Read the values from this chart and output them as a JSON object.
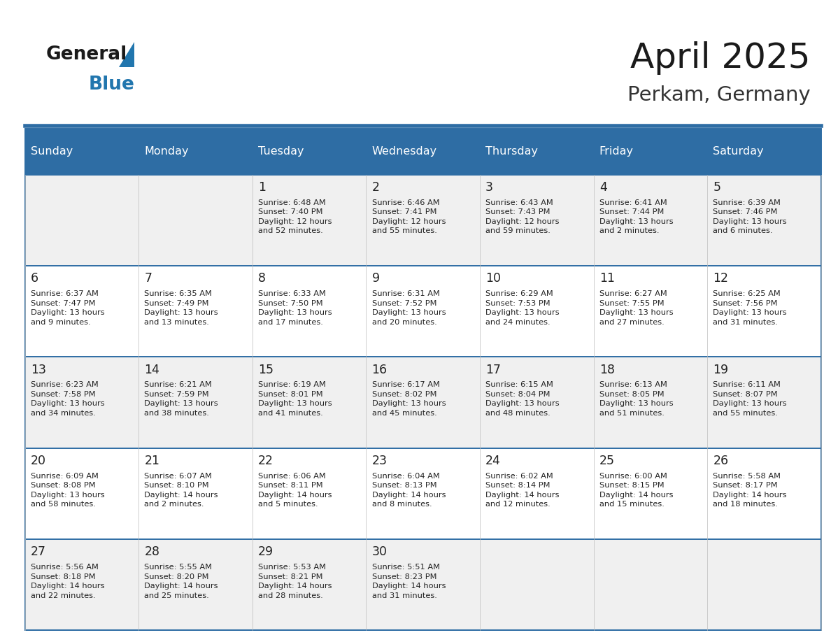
{
  "title": "April 2025",
  "subtitle": "Perkam, Germany",
  "days_of_week": [
    "Sunday",
    "Monday",
    "Tuesday",
    "Wednesday",
    "Thursday",
    "Friday",
    "Saturday"
  ],
  "header_bg": "#2E6DA4",
  "header_text": "#FFFFFF",
  "row_bg_even": "#F0F0F0",
  "row_bg_odd": "#FFFFFF",
  "cell_text": "#222222",
  "line_color": "#2E6DA4",
  "title_color": "#1a1a1a",
  "subtitle_color": "#333333",
  "logo_general_color": "#1a1a1a",
  "logo_blue_color": "#2176AE",
  "calendar": [
    [
      {
        "day": "",
        "info": ""
      },
      {
        "day": "",
        "info": ""
      },
      {
        "day": "1",
        "info": "Sunrise: 6:48 AM\nSunset: 7:40 PM\nDaylight: 12 hours\nand 52 minutes."
      },
      {
        "day": "2",
        "info": "Sunrise: 6:46 AM\nSunset: 7:41 PM\nDaylight: 12 hours\nand 55 minutes."
      },
      {
        "day": "3",
        "info": "Sunrise: 6:43 AM\nSunset: 7:43 PM\nDaylight: 12 hours\nand 59 minutes."
      },
      {
        "day": "4",
        "info": "Sunrise: 6:41 AM\nSunset: 7:44 PM\nDaylight: 13 hours\nand 2 minutes."
      },
      {
        "day": "5",
        "info": "Sunrise: 6:39 AM\nSunset: 7:46 PM\nDaylight: 13 hours\nand 6 minutes."
      }
    ],
    [
      {
        "day": "6",
        "info": "Sunrise: 6:37 AM\nSunset: 7:47 PM\nDaylight: 13 hours\nand 9 minutes."
      },
      {
        "day": "7",
        "info": "Sunrise: 6:35 AM\nSunset: 7:49 PM\nDaylight: 13 hours\nand 13 minutes."
      },
      {
        "day": "8",
        "info": "Sunrise: 6:33 AM\nSunset: 7:50 PM\nDaylight: 13 hours\nand 17 minutes."
      },
      {
        "day": "9",
        "info": "Sunrise: 6:31 AM\nSunset: 7:52 PM\nDaylight: 13 hours\nand 20 minutes."
      },
      {
        "day": "10",
        "info": "Sunrise: 6:29 AM\nSunset: 7:53 PM\nDaylight: 13 hours\nand 24 minutes."
      },
      {
        "day": "11",
        "info": "Sunrise: 6:27 AM\nSunset: 7:55 PM\nDaylight: 13 hours\nand 27 minutes."
      },
      {
        "day": "12",
        "info": "Sunrise: 6:25 AM\nSunset: 7:56 PM\nDaylight: 13 hours\nand 31 minutes."
      }
    ],
    [
      {
        "day": "13",
        "info": "Sunrise: 6:23 AM\nSunset: 7:58 PM\nDaylight: 13 hours\nand 34 minutes."
      },
      {
        "day": "14",
        "info": "Sunrise: 6:21 AM\nSunset: 7:59 PM\nDaylight: 13 hours\nand 38 minutes."
      },
      {
        "day": "15",
        "info": "Sunrise: 6:19 AM\nSunset: 8:01 PM\nDaylight: 13 hours\nand 41 minutes."
      },
      {
        "day": "16",
        "info": "Sunrise: 6:17 AM\nSunset: 8:02 PM\nDaylight: 13 hours\nand 45 minutes."
      },
      {
        "day": "17",
        "info": "Sunrise: 6:15 AM\nSunset: 8:04 PM\nDaylight: 13 hours\nand 48 minutes."
      },
      {
        "day": "18",
        "info": "Sunrise: 6:13 AM\nSunset: 8:05 PM\nDaylight: 13 hours\nand 51 minutes."
      },
      {
        "day": "19",
        "info": "Sunrise: 6:11 AM\nSunset: 8:07 PM\nDaylight: 13 hours\nand 55 minutes."
      }
    ],
    [
      {
        "day": "20",
        "info": "Sunrise: 6:09 AM\nSunset: 8:08 PM\nDaylight: 13 hours\nand 58 minutes."
      },
      {
        "day": "21",
        "info": "Sunrise: 6:07 AM\nSunset: 8:10 PM\nDaylight: 14 hours\nand 2 minutes."
      },
      {
        "day": "22",
        "info": "Sunrise: 6:06 AM\nSunset: 8:11 PM\nDaylight: 14 hours\nand 5 minutes."
      },
      {
        "day": "23",
        "info": "Sunrise: 6:04 AM\nSunset: 8:13 PM\nDaylight: 14 hours\nand 8 minutes."
      },
      {
        "day": "24",
        "info": "Sunrise: 6:02 AM\nSunset: 8:14 PM\nDaylight: 14 hours\nand 12 minutes."
      },
      {
        "day": "25",
        "info": "Sunrise: 6:00 AM\nSunset: 8:15 PM\nDaylight: 14 hours\nand 15 minutes."
      },
      {
        "day": "26",
        "info": "Sunrise: 5:58 AM\nSunset: 8:17 PM\nDaylight: 14 hours\nand 18 minutes."
      }
    ],
    [
      {
        "day": "27",
        "info": "Sunrise: 5:56 AM\nSunset: 8:18 PM\nDaylight: 14 hours\nand 22 minutes."
      },
      {
        "day": "28",
        "info": "Sunrise: 5:55 AM\nSunset: 8:20 PM\nDaylight: 14 hours\nand 25 minutes."
      },
      {
        "day": "29",
        "info": "Sunrise: 5:53 AM\nSunset: 8:21 PM\nDaylight: 14 hours\nand 28 minutes."
      },
      {
        "day": "30",
        "info": "Sunrise: 5:51 AM\nSunset: 8:23 PM\nDaylight: 14 hours\nand 31 minutes."
      },
      {
        "day": "",
        "info": ""
      },
      {
        "day": "",
        "info": ""
      },
      {
        "day": "",
        "info": ""
      }
    ]
  ]
}
